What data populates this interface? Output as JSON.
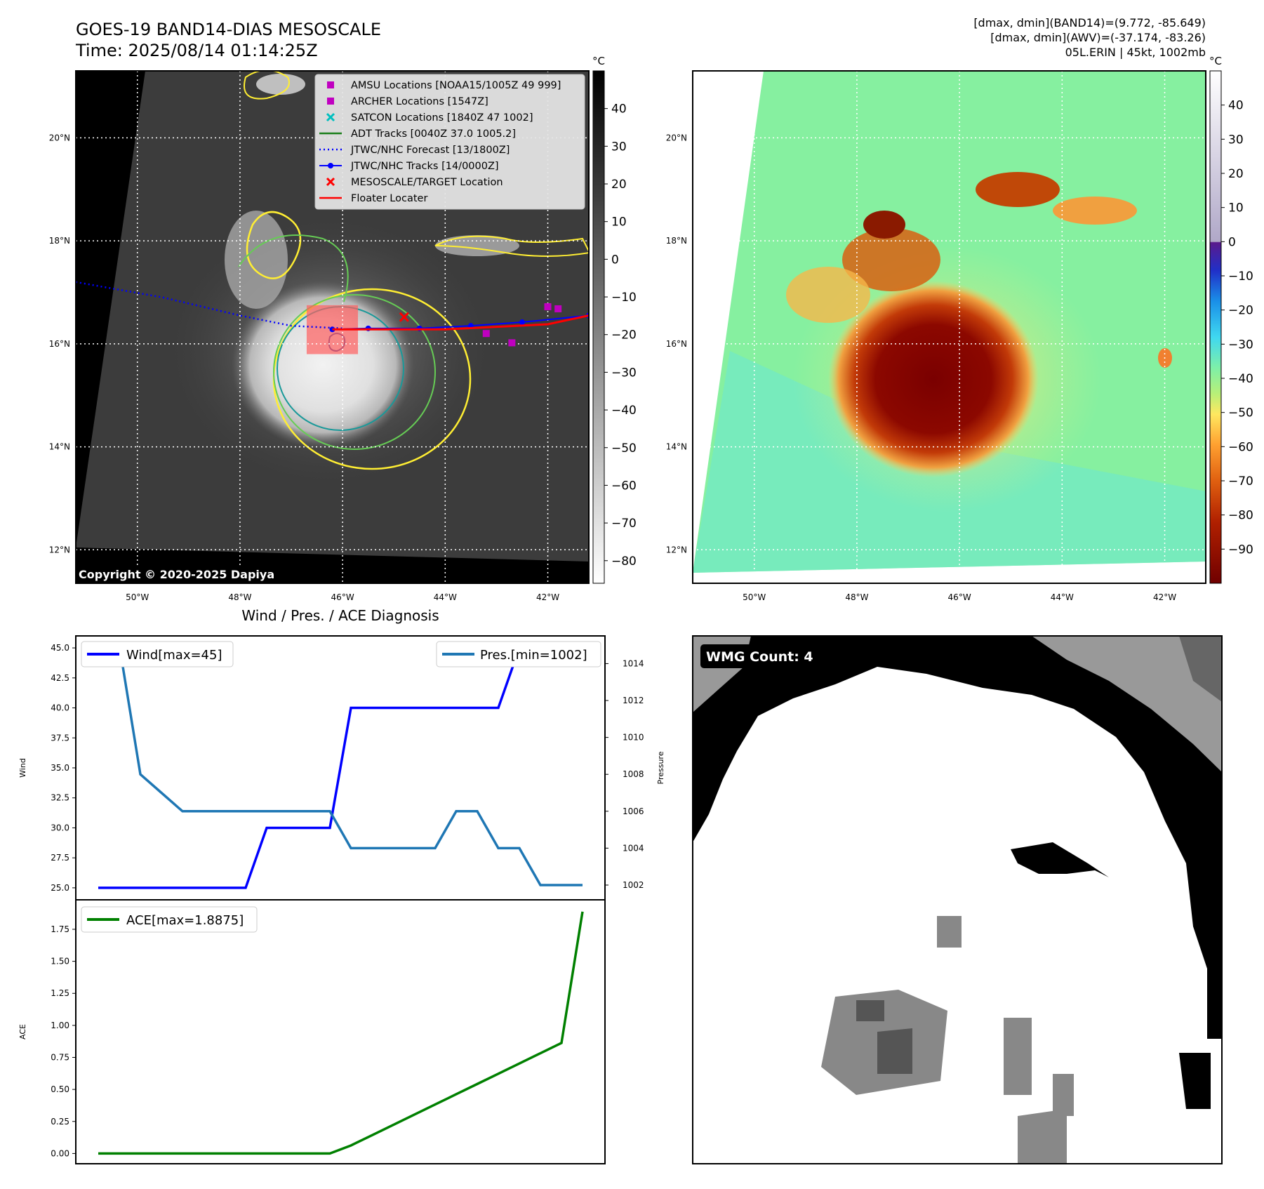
{
  "header": {
    "title": "GOES-19 BAND14-DIAS MESOSCALE",
    "time": "Time: 2025/08/14 01:14:25Z",
    "stats_band14": "[dmax, dmin](BAND14)=(9.772, -85.649)",
    "stats_awv": "[dmax, dmin](AWV)=(-37.174, -83.26)",
    "storm": "05L.ERIN | 45kt, 1002mb"
  },
  "map_common": {
    "lat_labels": [
      "20°N",
      "18°N",
      "16°N",
      "14°N",
      "12°N"
    ],
    "lon_labels": [
      "50°W",
      "48°W",
      "46°W",
      "44°W",
      "42°W"
    ],
    "lat_values": [
      20,
      18,
      16,
      14,
      12
    ],
    "lon_values": [
      -50,
      -48,
      -46,
      -44,
      -42
    ],
    "lon_range": [
      -51.2,
      -41.2
    ],
    "lat_range": [
      11.35,
      21.3
    ]
  },
  "ir_map": {
    "copyright": "Copyright © 2020-2025 Dapiya",
    "colorbar": {
      "unit": "°C",
      "ticks": [
        "40",
        "30",
        "20",
        "10",
        "0",
        "−10",
        "−20",
        "−30",
        "−40",
        "−50",
        "−60",
        "−70",
        "−80"
      ],
      "range": [
        -86,
        50
      ]
    },
    "legend": [
      {
        "label": "AMSU Locations [NOAA15/1005Z 49 999]",
        "marker": "square",
        "color": "#c000c0"
      },
      {
        "label": "ARCHER Locations [1547Z]",
        "marker": "square",
        "color": "#c000c0"
      },
      {
        "label": "SATCON Locations [1840Z 47 1002]",
        "marker": "x",
        "color": "#00bfbf"
      },
      {
        "label": "ADT Tracks [0040Z 37.0 1005.2]",
        "marker": "line",
        "color": "#1a7f1a"
      },
      {
        "label": "JTWC/NHC Forecast [13/1800Z]",
        "marker": "dotted",
        "color": "#0000ff"
      },
      {
        "label": "JTWC/NHC Tracks [14/0000Z]",
        "marker": "line-dot",
        "color": "#0000ff"
      },
      {
        "label": "MESOSCALE/TARGET Location",
        "marker": "x",
        "color": "#ff0000"
      },
      {
        "label": "Floater Locater",
        "marker": "line",
        "color": "#ff0000"
      }
    ],
    "forecast_track": [
      [
        -51.2,
        17.2
      ],
      [
        -49.5,
        16.9
      ],
      [
        -48,
        16.55
      ],
      [
        -47,
        16.35
      ],
      [
        -46,
        16.3
      ]
    ],
    "best_track": [
      [
        -46.2,
        16.28
      ],
      [
        -45.5,
        16.3
      ],
      [
        -44.5,
        16.3
      ],
      [
        -43.5,
        16.35
      ],
      [
        -42.5,
        16.42
      ],
      [
        -41.2,
        16.55
      ]
    ],
    "floater_line": [
      [
        -46.2,
        16.28
      ],
      [
        -44,
        16.28
      ],
      [
        -42,
        16.38
      ],
      [
        -41.2,
        16.55
      ]
    ],
    "amsu_points": [
      [
        -42.0,
        16.72
      ],
      [
        -41.8,
        16.68
      ],
      [
        -43.2,
        16.2
      ],
      [
        -42.7,
        16.02
      ]
    ],
    "target_location": [
      -44.8,
      16.52
    ],
    "target_box": {
      "lon": [
        -46.7,
        -45.7
      ],
      "lat": [
        15.8,
        16.75
      ]
    }
  },
  "awv_map": {
    "colorbar": {
      "unit": "°C",
      "ticks": [
        "40",
        "30",
        "20",
        "10",
        "0",
        "−10",
        "−20",
        "−30",
        "−40",
        "−50",
        "−60",
        "−70",
        "−80",
        "−90"
      ],
      "range": [
        -100,
        50
      ]
    }
  },
  "diag": {
    "title": "Wind / Pres. / ACE Diagnosis",
    "wind_legend": "Wind[max=45]",
    "pres_legend": "Pres.[min=1002]",
    "ace_legend": "ACE[max=1.8875]",
    "wind_axis_label": "Wind",
    "pres_axis_label": "Pressure",
    "ace_axis_label": "ACE",
    "wind_ticks": [
      "45.0",
      "42.5",
      "40.0",
      "37.5",
      "35.0",
      "32.5",
      "30.0",
      "27.5",
      "25.0"
    ],
    "pres_ticks": [
      "1014",
      "1012",
      "1010",
      "1008",
      "1006",
      "1004",
      "1002"
    ],
    "ace_ticks": [
      "1.75",
      "1.50",
      "1.25",
      "1.00",
      "0.75",
      "0.50",
      "0.25",
      "0.00"
    ],
    "colors": {
      "wind": "#0000ff",
      "pressure": "#1f77b4",
      "ace": "#008000"
    }
  },
  "chart_data": [
    {
      "type": "line",
      "title": "Wind / Pres. / ACE Diagnosis",
      "ylabel": "Wind",
      "y2label": "Pressure",
      "ylim": [
        24,
        46
      ],
      "y2lim": [
        1001.2,
        1015.5
      ],
      "x": [
        0,
        1,
        2,
        3,
        4,
        5,
        6,
        7,
        8,
        9,
        10,
        11,
        12,
        13,
        14,
        15,
        16,
        17,
        18,
        19,
        20,
        21,
        22,
        23
      ],
      "series": [
        {
          "name": "Wind[max=45]",
          "axis": "left",
          "values": [
            25,
            25,
            25,
            25,
            25,
            25,
            25,
            25,
            30,
            30,
            30,
            30,
            40,
            40,
            40,
            40,
            40,
            40,
            40,
            40,
            45,
            45,
            45,
            45
          ]
        },
        {
          "name": "Pres.[min=1002]",
          "axis": "right",
          "values": [
            1015,
            1015,
            1008,
            1007,
            1006,
            1006,
            1006,
            1006,
            1006,
            1006,
            1006,
            1006,
            1004,
            1004,
            1004,
            1004,
            1004,
            1006,
            1006,
            1004,
            1004,
            1002,
            1002,
            1002
          ]
        }
      ]
    },
    {
      "type": "line",
      "ylabel": "ACE",
      "ylim": [
        -0.08,
        1.98
      ],
      "x": [
        0,
        1,
        2,
        3,
        4,
        5,
        6,
        7,
        8,
        9,
        10,
        11,
        12,
        13,
        14,
        15,
        16,
        17,
        18,
        19,
        20,
        21,
        22,
        23
      ],
      "series": [
        {
          "name": "ACE[max=1.8875]",
          "values": [
            0,
            0,
            0,
            0,
            0,
            0,
            0,
            0,
            0,
            0,
            0,
            0,
            0.0625,
            0.1425,
            0.2225,
            0.3025,
            0.3825,
            0.4625,
            0.5425,
            0.6225,
            0.7025,
            0.7825,
            0.8625,
            1.8875
          ]
        }
      ]
    }
  ],
  "wmg": {
    "label": "WMG Count: 4"
  }
}
